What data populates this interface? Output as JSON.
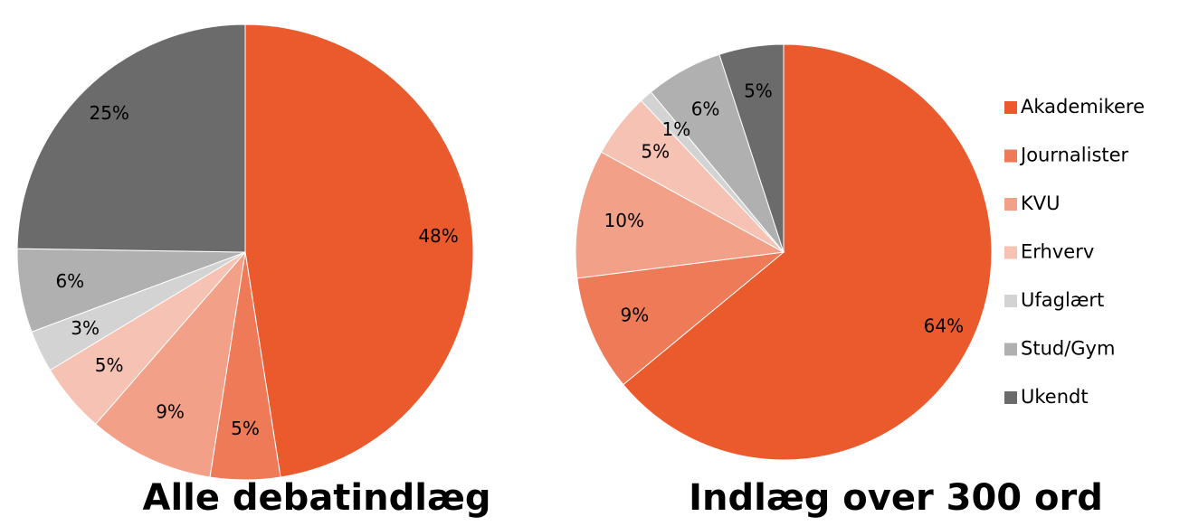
{
  "chart_data": [
    {
      "type": "pie",
      "title": "Alle debatindlæg",
      "categories": [
        "Akademikere",
        "Journalister",
        "KVU",
        "Erhverv",
        "Ufaglært",
        "Stud/Gym",
        "Ukendt"
      ],
      "values": [
        48,
        5,
        9,
        5,
        3,
        6,
        25
      ],
      "value_labels": [
        "48%",
        "5%",
        "9%",
        "5%",
        "3%",
        "6%",
        "25%"
      ],
      "colors": [
        "#eb5a2c",
        "#ee7a58",
        "#f2a088",
        "#f5c2b3",
        "#d3d3d3",
        "#b0b0b0",
        "#6b6b6b"
      ]
    },
    {
      "type": "pie",
      "title": "Indlæg over 300 ord",
      "categories": [
        "Akademikere",
        "Journalister",
        "KVU",
        "Erhverv",
        "Ufaglært",
        "Stud/Gym",
        "Ukendt"
      ],
      "values": [
        64,
        9,
        10,
        5,
        1,
        6,
        5
      ],
      "value_labels": [
        "64%",
        "9%",
        "10%",
        "5%",
        "1%",
        "6%",
        "5%"
      ],
      "colors": [
        "#eb5a2c",
        "#ee7a58",
        "#f2a088",
        "#f5c2b3",
        "#d3d3d3",
        "#b0b0b0",
        "#6b6b6b"
      ],
      "legend": "right"
    }
  ]
}
